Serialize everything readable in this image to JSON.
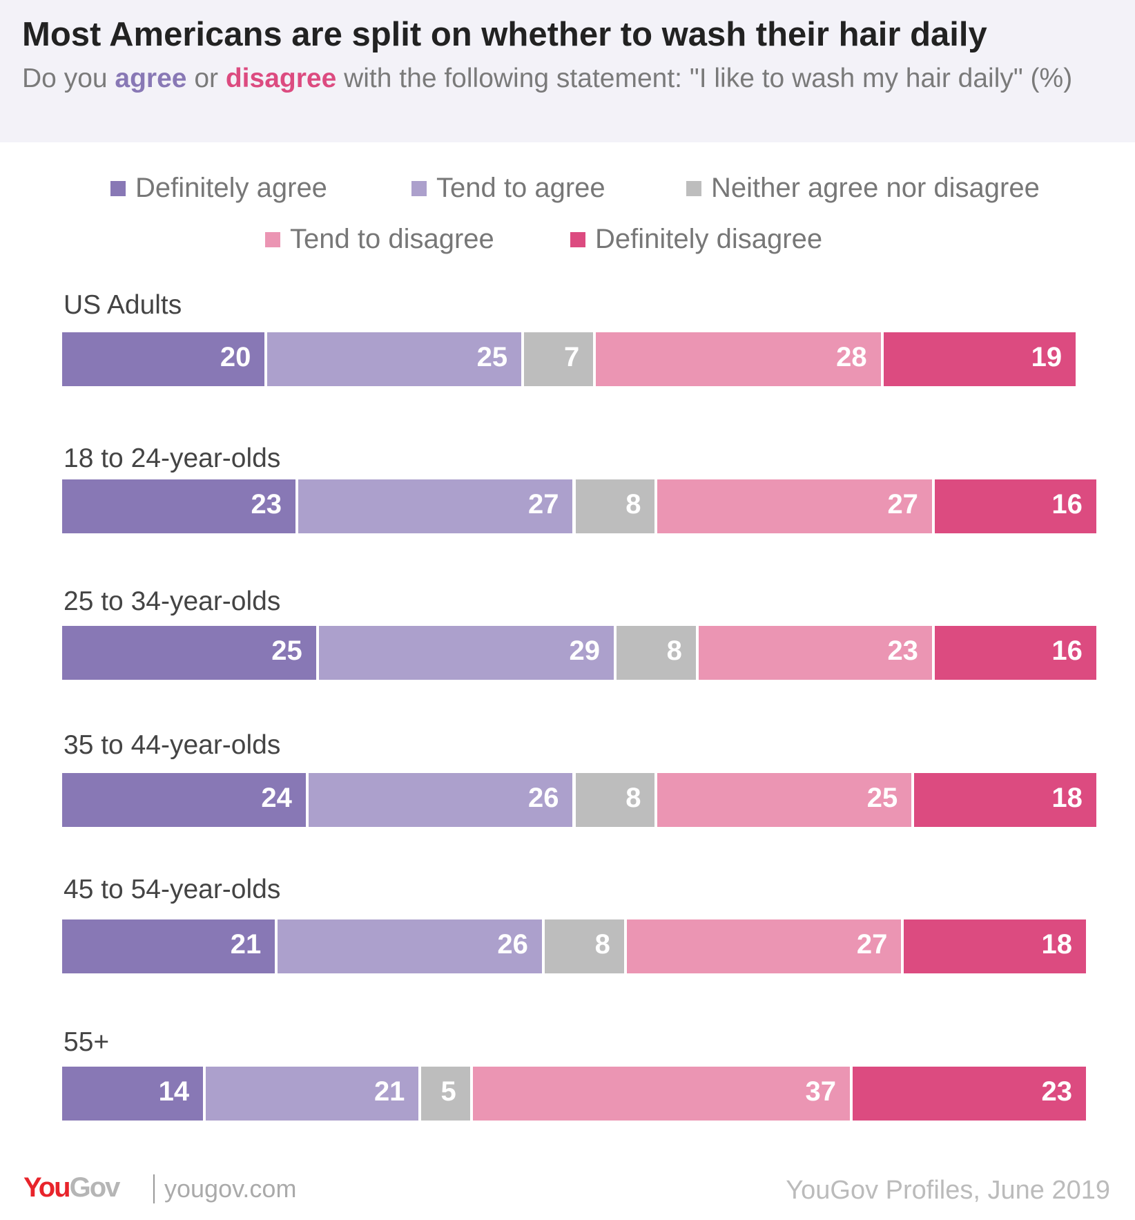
{
  "title": "Most Americans are split on whether to wash their hair daily",
  "subtitle": {
    "p1": "Do you ",
    "agree": "agree",
    "p2": " or ",
    "disagree": "disagree",
    "p3": " with the following statement: \"I like to wash my hair daily\" (%)"
  },
  "footer": {
    "logo_you": "You",
    "logo_gov": "Gov",
    "site": "yougov.com",
    "source": "YouGov Profiles, June 2019"
  },
  "chart_data": {
    "type": "bar",
    "orientation": "horizontal",
    "stacked": true,
    "title": "Most Americans are split on whether to wash their hair daily",
    "legend_placement": "top",
    "categories": [
      "US Adults",
      "18 to 24-year-olds",
      "25 to 34-year-olds",
      "35 to 44-year-olds",
      "45 to 54-year-olds",
      "55+"
    ],
    "series": [
      {
        "name": "Definitely agree",
        "color": "#8878b5",
        "values": [
          20,
          23,
          25,
          24,
          21,
          14
        ]
      },
      {
        "name": "Tend to agree",
        "color": "#aca0cc",
        "values": [
          25,
          27,
          29,
          26,
          26,
          21
        ]
      },
      {
        "name": "Neither agree nor disagree",
        "color": "#bdbdbd",
        "values": [
          7,
          8,
          8,
          8,
          8,
          5
        ]
      },
      {
        "name": "Tend to disagree",
        "color": "#eb95b3",
        "values": [
          28,
          27,
          23,
          25,
          27,
          37
        ]
      },
      {
        "name": "Definitely disagree",
        "color": "#dc4b80",
        "values": [
          19,
          16,
          16,
          18,
          18,
          23
        ]
      }
    ]
  }
}
